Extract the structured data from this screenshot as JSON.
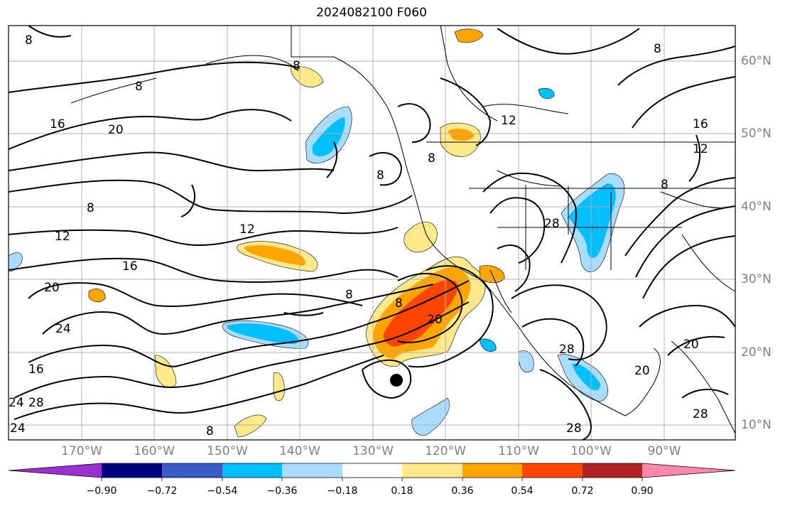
{
  "title": "2024082100 F060",
  "lon_labels": [
    "170°W",
    "160°W",
    "150°W",
    "140°W",
    "130°W",
    "120°W",
    "110°W",
    "100°W",
    "90°W"
  ],
  "lat_labels": [
    "60°N",
    "50°N",
    "40°N",
    "30°N",
    "20°N",
    "10°N"
  ],
  "colorbar": {
    "ticks": [
      "−0.90",
      "−0.72",
      "−0.54",
      "−0.36",
      "−0.18",
      "0.18",
      "0.36",
      "0.54",
      "0.72",
      "0.90"
    ],
    "colors": [
      "#9b30d0",
      "#000080",
      "#3a5bc8",
      "#00bfff",
      "#a9dcff",
      "#ffffff",
      "#ffe98a",
      "#ffa500",
      "#ff4500",
      "#b22222",
      "#ff88aa"
    ]
  },
  "contour_labels": [
    "8",
    "8",
    "8",
    "16",
    "20",
    "8",
    "12",
    "16",
    "20",
    "24",
    "16",
    "24",
    "28",
    "24",
    "8",
    "12",
    "8",
    "8",
    "8",
    "20",
    "28",
    "12",
    "16",
    "12",
    "8",
    "8",
    "28",
    "28",
    "20",
    "20",
    "28",
    "8"
  ],
  "colors": {
    "positive_fill_light": "#ffe98a",
    "positive_fill_mid": "#ffa500",
    "positive_fill_strong": "#ff4500",
    "negative_fill_light": "#a9dcff",
    "negative_fill_mid": "#00bfff",
    "storm_marker": "#000000"
  }
}
